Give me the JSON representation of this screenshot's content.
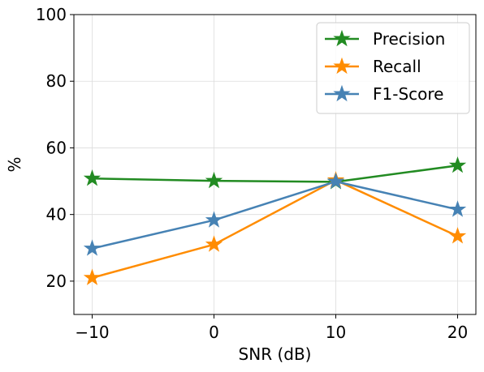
{
  "chart_data": {
    "type": "line",
    "title": "",
    "xlabel": "SNR (dB)",
    "ylabel": "%",
    "x": [
      -10,
      0,
      10,
      20
    ],
    "xticks": [
      -10,
      0,
      10,
      20
    ],
    "xtick_labels": [
      "−10",
      "0",
      "10",
      "20"
    ],
    "yticks": [
      20,
      40,
      60,
      80,
      100
    ],
    "xlim": [
      -11.5,
      21.5
    ],
    "ylim": [
      10,
      100
    ],
    "grid": true,
    "legend_position": "top-right",
    "series": [
      {
        "name": "Precision",
        "color": "#228b22",
        "marker": "star",
        "values": [
          50.8,
          50.1,
          49.8,
          54.7
        ]
      },
      {
        "name": "Recall",
        "color": "#ff8c00",
        "marker": "star",
        "values": [
          21.0,
          31.0,
          50.3,
          33.5
        ]
      },
      {
        "name": "F1-Score",
        "color": "#4682b4",
        "marker": "star",
        "values": [
          29.8,
          38.3,
          49.9,
          41.5
        ]
      }
    ]
  }
}
